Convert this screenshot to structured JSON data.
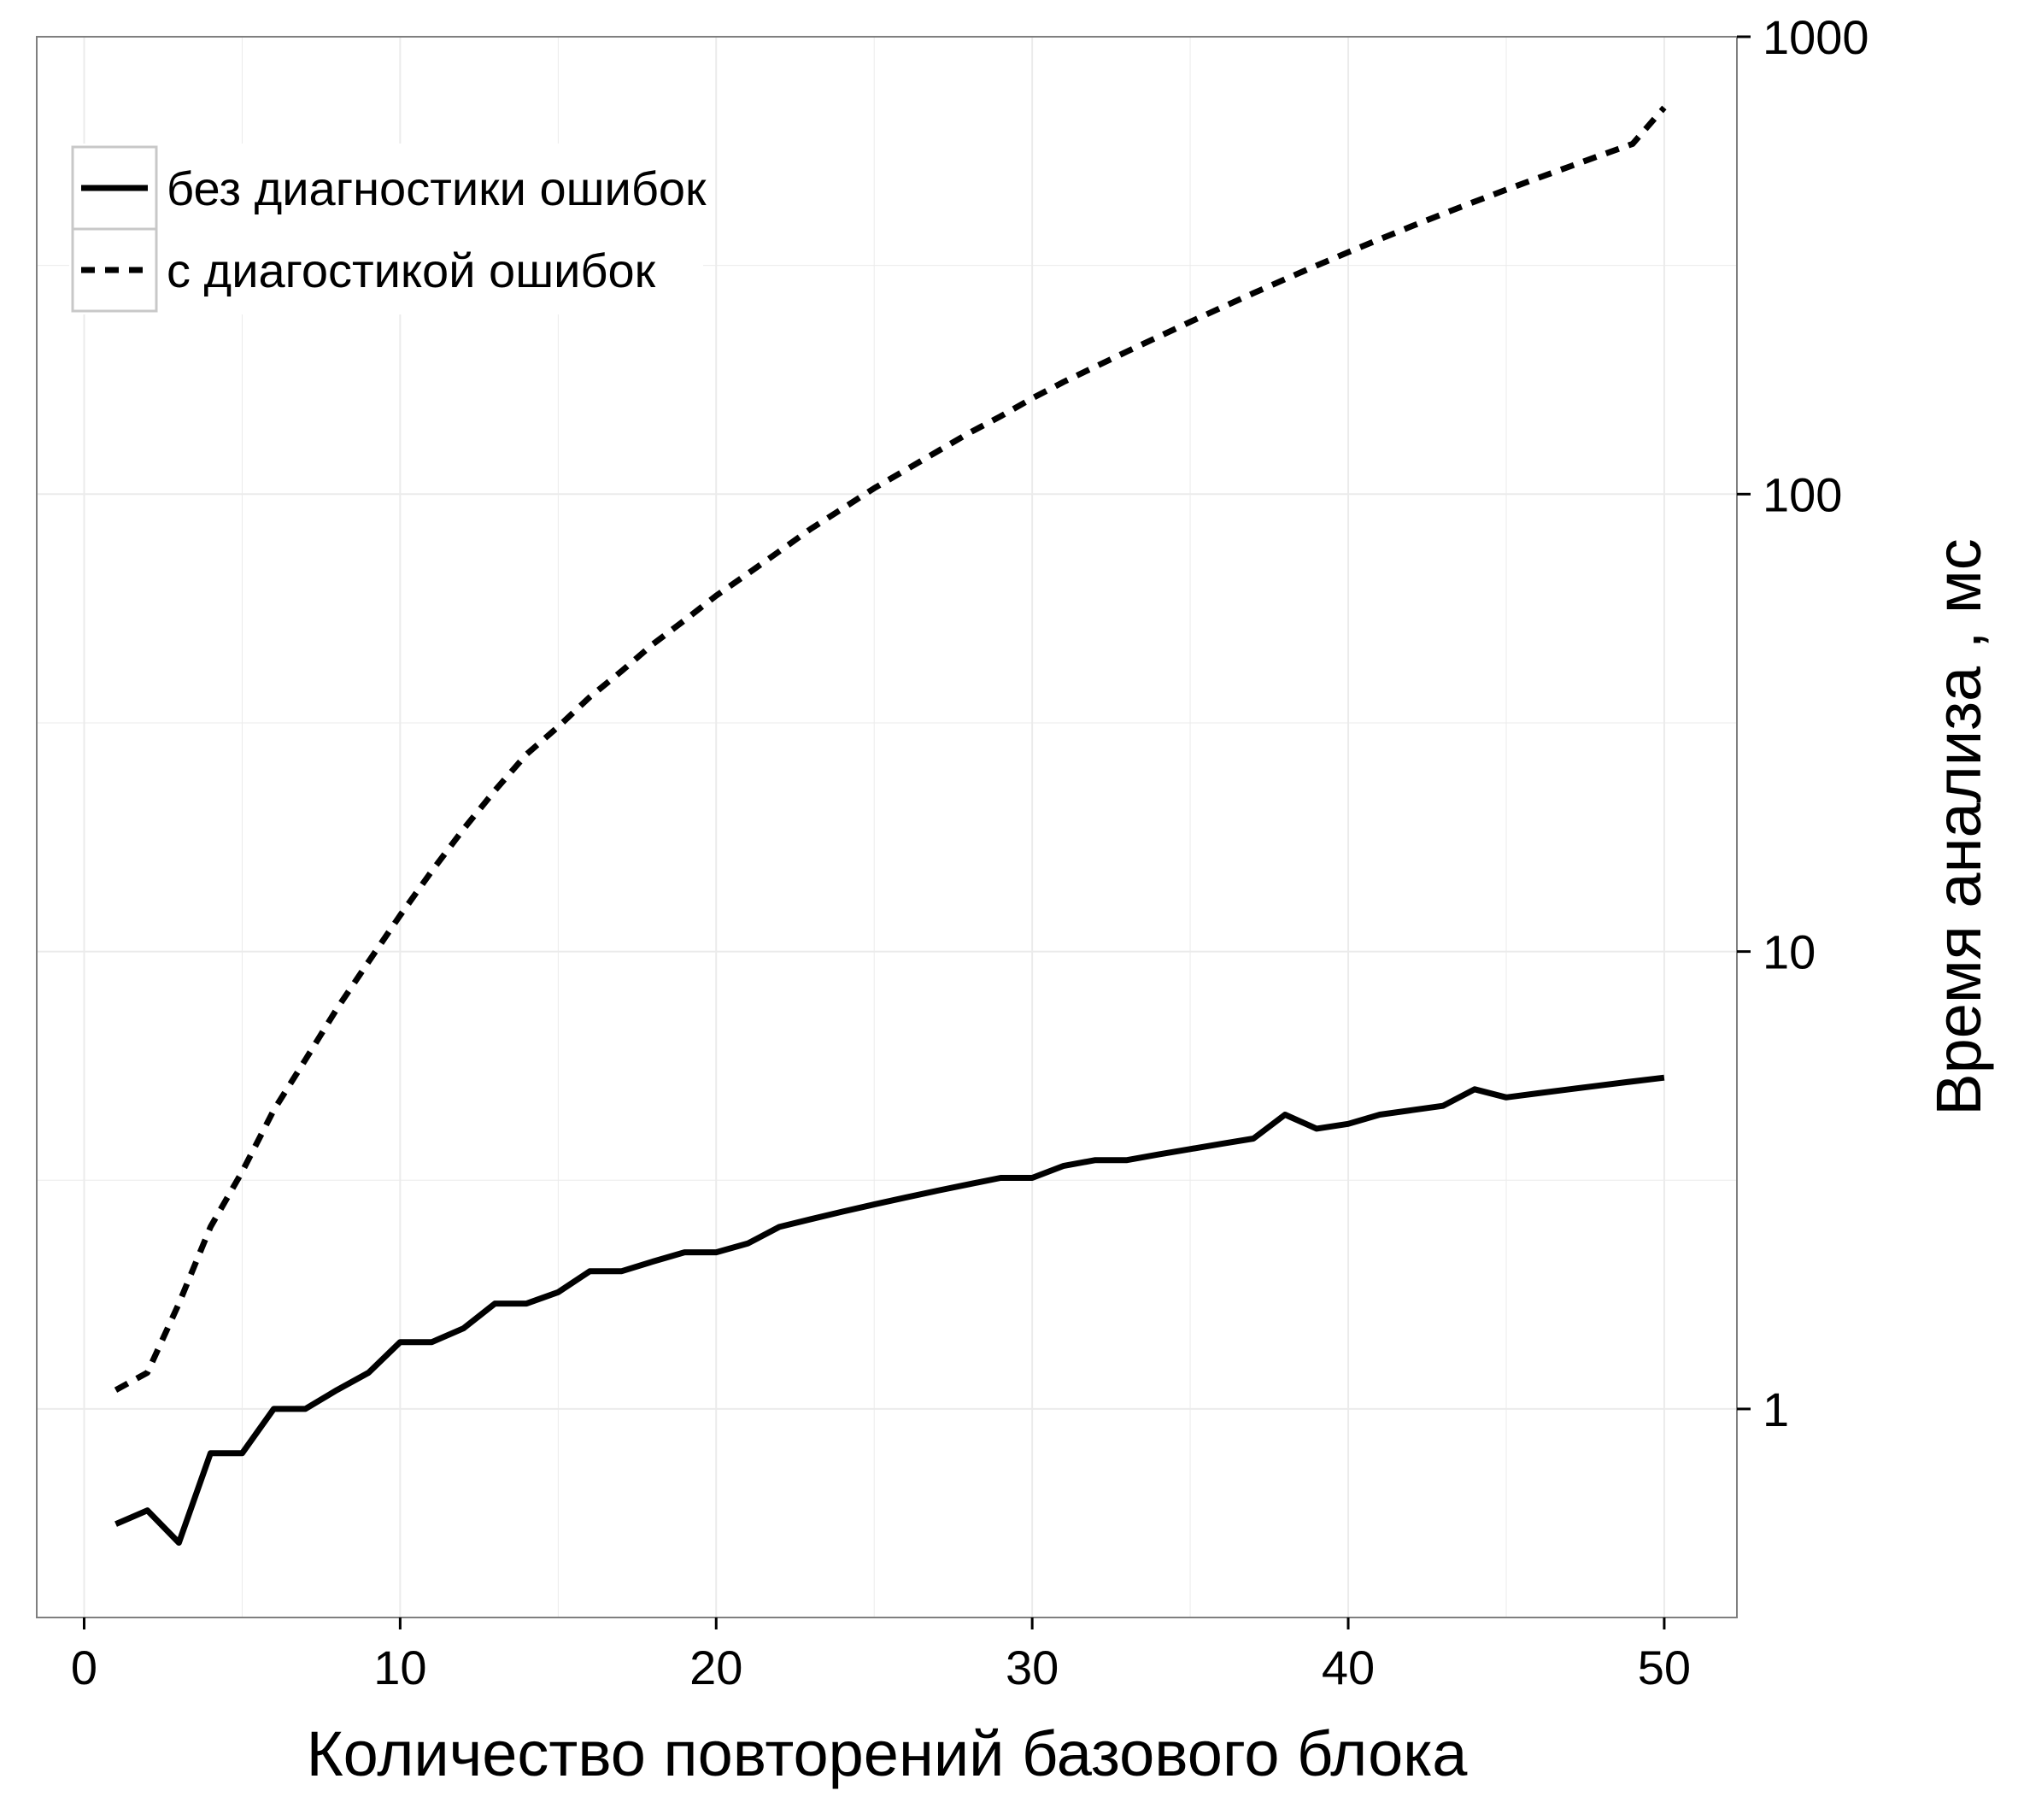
{
  "chart_data": {
    "type": "line",
    "title": "",
    "xlabel": "Количество повторений базового блока",
    "ylabel": "Время анализа , мс",
    "y_axis_side": "right",
    "y_scale": "log10",
    "xlim": [
      -1.5,
      52.3
    ],
    "ylim": [
      0.35,
      1000
    ],
    "x_ticks": [
      0,
      10,
      20,
      30,
      40,
      50
    ],
    "x_tick_labels": [
      "0",
      "10",
      "20",
      "30",
      "40",
      "50"
    ],
    "y_ticks": [
      1,
      10,
      100,
      1000
    ],
    "y_tick_labels": [
      "1",
      "10",
      "100",
      "1000"
    ],
    "grid": true,
    "legend_position": "top-left",
    "colors": {
      "series": "#000000",
      "grid": "#ebebeb",
      "panel_border": "#7f7f7f",
      "legend_border": "#c8c8c8"
    },
    "legend": [
      {
        "label": "без диагностики ошибок",
        "line_style": "solid"
      },
      {
        "label": "с диагостикой ошибок",
        "line_style": "dashed"
      }
    ],
    "series": [
      {
        "name": "без диагностики ошибок",
        "line_style": "solid",
        "x": [
          1,
          2,
          3,
          4,
          5,
          6,
          7,
          8,
          9,
          10,
          11,
          12,
          13,
          14,
          15,
          16,
          17,
          18,
          19,
          20,
          21,
          22,
          23,
          24,
          25,
          26,
          27,
          28,
          29,
          30,
          31,
          32,
          33,
          34,
          35,
          36,
          37,
          38,
          39,
          40,
          41,
          42,
          43,
          44,
          45,
          46,
          47,
          48,
          49,
          50
        ],
        "values": [
          0.56,
          0.6,
          0.51,
          0.8,
          0.8,
          1.0,
          1.0,
          1.1,
          1.2,
          1.4,
          1.4,
          1.5,
          1.7,
          1.7,
          1.8,
          2.0,
          2.0,
          2.1,
          2.2,
          2.2,
          2.3,
          2.5,
          2.6,
          2.7,
          2.8,
          2.9,
          3.0,
          3.1,
          3.2,
          3.2,
          3.4,
          3.5,
          3.5,
          3.6,
          3.7,
          3.8,
          3.9,
          4.4,
          4.1,
          4.2,
          4.4,
          4.5,
          4.6,
          5.0,
          4.8,
          4.9,
          5.0,
          5.1,
          5.2,
          5.3
        ]
      },
      {
        "name": "с диагостикой ошибок",
        "line_style": "dashed",
        "x": [
          1,
          2,
          3,
          4,
          5,
          6,
          7,
          8,
          9,
          10,
          11,
          12,
          13,
          14,
          15,
          16,
          17,
          18,
          19,
          20,
          21,
          22,
          23,
          24,
          25,
          26,
          27,
          28,
          29,
          30,
          31,
          32,
          33,
          34,
          35,
          36,
          37,
          38,
          39,
          40,
          41,
          42,
          43,
          44,
          45,
          46,
          47,
          48,
          49,
          50
        ],
        "values": [
          1.1,
          1.2,
          1.7,
          2.5,
          3.3,
          4.5,
          5.8,
          7.5,
          9.5,
          12,
          15,
          18.5,
          22.5,
          27,
          31,
          36,
          41,
          47,
          53,
          60,
          67,
          75,
          84,
          93,
          103,
          113,
          124,
          136,
          148,
          162,
          176,
          190,
          205,
          221,
          238,
          256,
          275,
          295,
          316,
          338,
          361,
          385,
          410,
          436,
          463,
          491,
          520,
          551,
          583,
          700
        ]
      }
    ]
  }
}
